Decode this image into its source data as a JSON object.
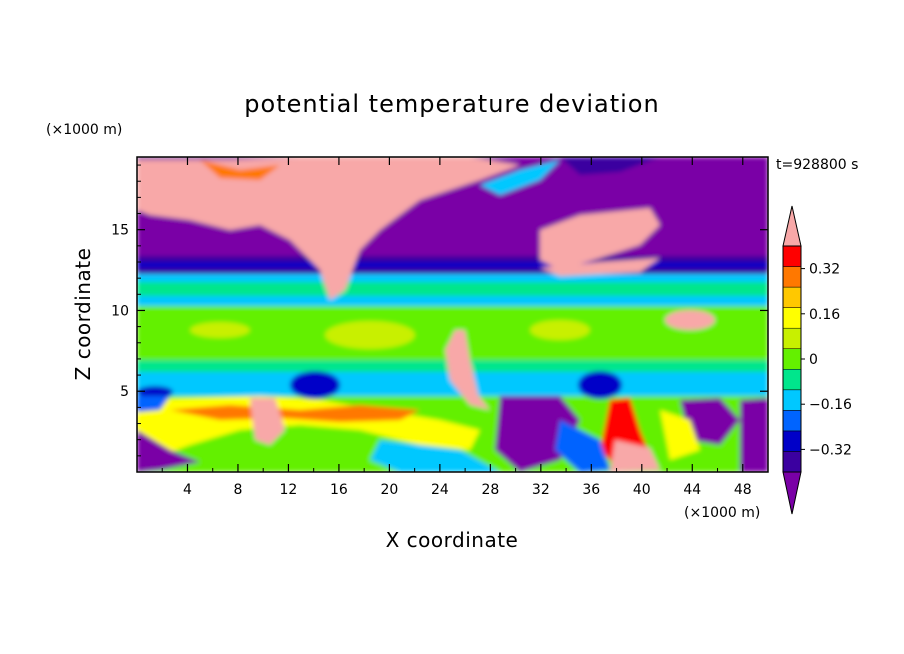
{
  "chart_data": {
    "type": "heatmap",
    "title": "potential temperature deviation",
    "time_label": "t=928800 s",
    "xlabel": "X coordinate",
    "ylabel": "Z coordinate",
    "x_unit": "(×1000 m)",
    "z_unit": "(×1000 m)",
    "xlim": [
      0,
      50
    ],
    "ylim": [
      0,
      19.5
    ],
    "x_ticks": [
      "4",
      "8",
      "12",
      "16",
      "20",
      "24",
      "28",
      "32",
      "36",
      "40",
      "44",
      "48"
    ],
    "y_ticks": [
      "5",
      "10",
      "15"
    ],
    "x_tick_values": [
      4,
      8,
      12,
      16,
      20,
      24,
      28,
      32,
      36,
      40,
      44,
      48
    ],
    "y_tick_values": [
      5,
      10,
      15
    ],
    "colorbar": {
      "levels": [
        -0.4,
        -0.32,
        -0.24,
        -0.16,
        -0.08,
        0,
        0.08,
        0.16,
        0.24,
        0.32,
        0.4
      ],
      "labels": [
        "0.32",
        "0.16",
        "0",
        "−0.16",
        "−0.32"
      ],
      "label_values": [
        0.32,
        0.16,
        0,
        -0.16,
        -0.32
      ],
      "colors": [
        "#7a00a6",
        "#3b00a0",
        "#0000c8",
        "#0064ff",
        "#00c8ff",
        "#00e68c",
        "#64f000",
        "#c8f000",
        "#ffff00",
        "#ffc800",
        "#ff7800",
        "#ff0000",
        "#f8a8a8"
      ],
      "extend": "both"
    },
    "notes": "Field values (potential temperature deviation) are only shown as colored contour regions; approximate horizontal layering: purple/pink above ~13 km, blue band ~12.5-13.5 km, cyan/green 5-12 km, mixed colors below 5 km."
  }
}
